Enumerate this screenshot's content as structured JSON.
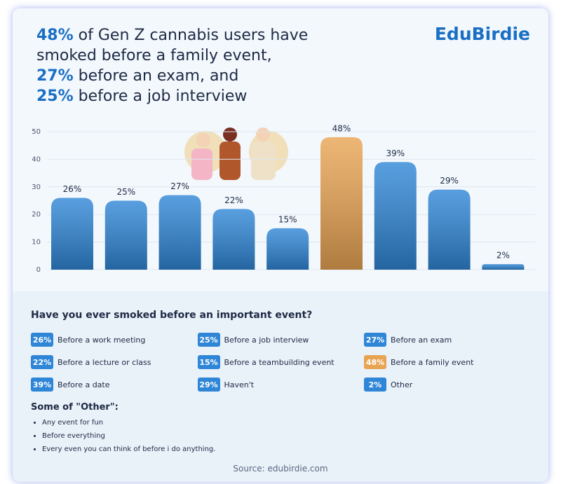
{
  "chart_data": {
    "type": "bar",
    "title_lines": [
      {
        "bold": "48%",
        "text": " of Gen Z cannabis users have"
      },
      {
        "text": "smoked before a family event,"
      },
      {
        "bold": "27%",
        "text": " before an exam, and"
      },
      {
        "bold": "25%",
        "text": " before a job interview"
      }
    ],
    "brand": "EduBirdie",
    "question": "Have you ever smoked before an important event?",
    "categories": [
      "Before a work meeting",
      "Before a job interview",
      "Before an exam",
      "Before a lecture or class",
      "Before a teambuilding event",
      "Before a family event",
      "Before a date",
      "Haven't",
      "Other"
    ],
    "values": [
      26,
      25,
      27,
      22,
      15,
      48,
      39,
      29,
      2
    ],
    "value_labels": [
      "26%",
      "25%",
      "27%",
      "22%",
      "15%",
      "48%",
      "39%",
      "29%",
      "2%"
    ],
    "colors": [
      "#2f86d6",
      "#2f86d6",
      "#2f86d6",
      "#2f86d6",
      "#2f86d6",
      "#e9a453",
      "#2f86d6",
      "#2f86d6",
      "#2f86d6"
    ],
    "ylim": [
      0,
      50
    ],
    "yticks": [
      0,
      10,
      20,
      30,
      40,
      50
    ],
    "grid": true,
    "other_heading": "Some of \"Other\":",
    "other_answers": [
      "Any event for fun",
      "Before everything",
      "Every even you can think of before i do anything."
    ],
    "source": "Source: edubirdie.com"
  }
}
